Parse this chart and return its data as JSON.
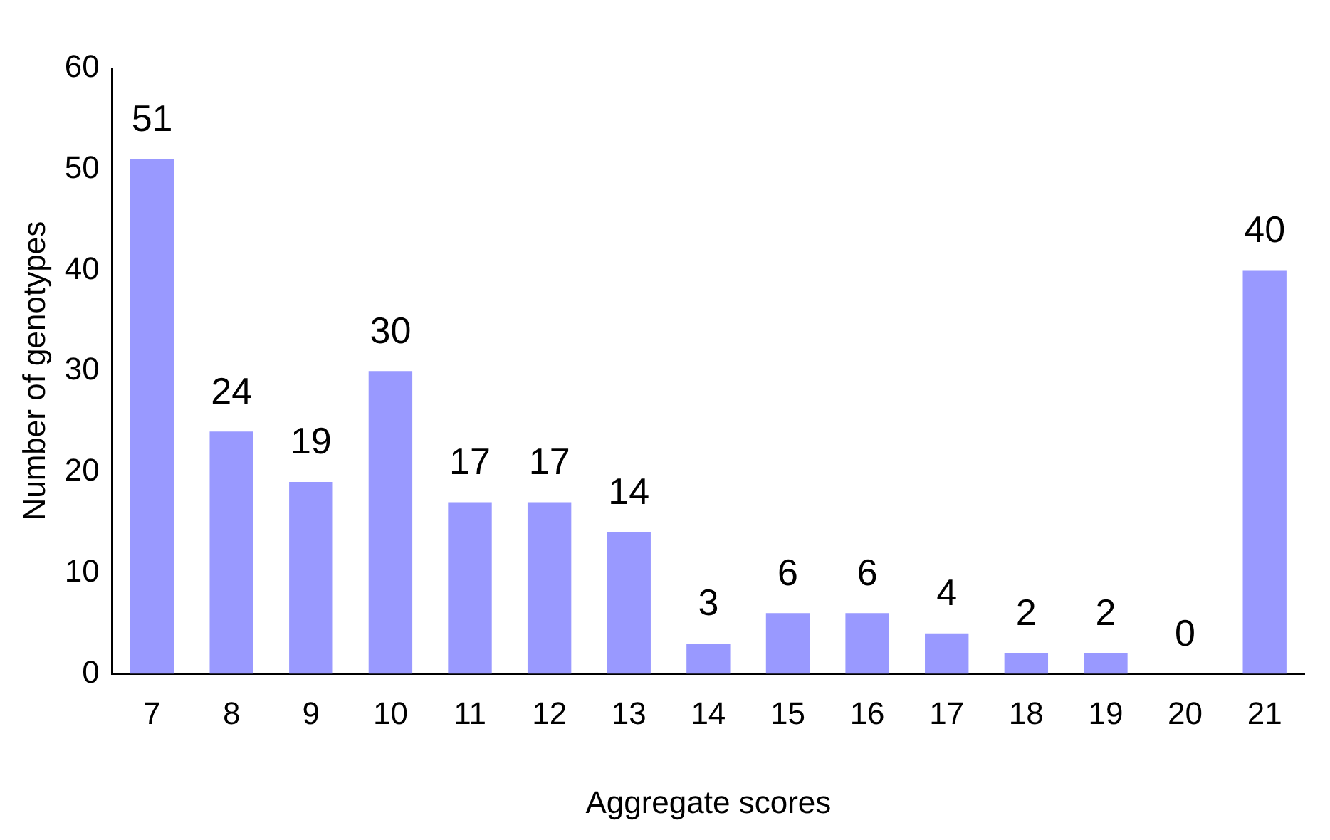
{
  "chart_data": {
    "type": "bar",
    "xlabel": "Aggregate scores",
    "ylabel": "Number of genotypes",
    "categories": [
      "7",
      "8",
      "9",
      "10",
      "11",
      "12",
      "13",
      "14",
      "15",
      "16",
      "17",
      "18",
      "19",
      "20",
      "21"
    ],
    "values": [
      51,
      24,
      19,
      30,
      17,
      17,
      14,
      3,
      6,
      6,
      4,
      2,
      2,
      0,
      40
    ],
    "color": "#9999ff",
    "ylim": [
      0,
      60
    ],
    "yticks": [
      0,
      10,
      20,
      30,
      40,
      50,
      60
    ],
    "data_labels": true,
    "grid": false,
    "legend": false
  }
}
